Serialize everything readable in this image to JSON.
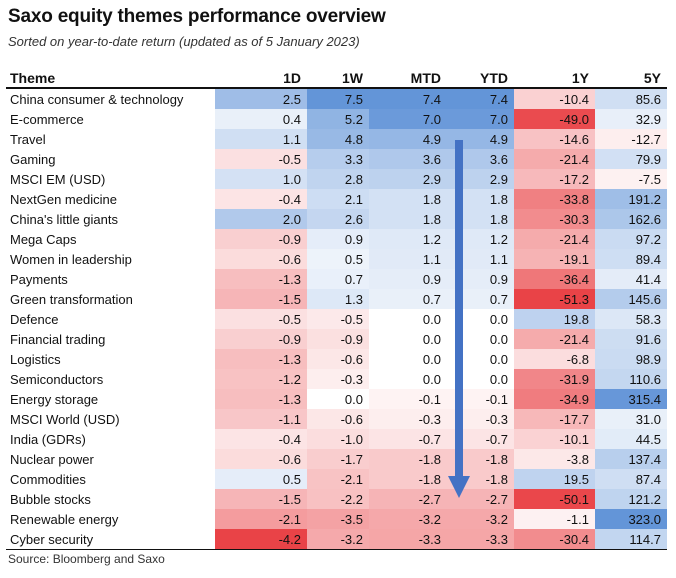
{
  "title": "Saxo equity themes performance overview",
  "subtitle": "Sorted on year-to-date return (updated as of 5 January 2023)",
  "source": "Source: Bloomberg and Saxo",
  "colors": {
    "positive": "#5b8fd6",
    "negative": "#e8393d",
    "arrow": "#4472c4"
  },
  "chart_data": {
    "type": "table",
    "columns": [
      "Theme",
      "1D",
      "1W",
      "MTD",
      "YTD",
      "1Y",
      "5Y"
    ],
    "rows": [
      {
        "theme": "China consumer & technology",
        "values": [
          2.5,
          7.5,
          7.4,
          7.4,
          -10.4,
          85.6
        ]
      },
      {
        "theme": "E-commerce",
        "values": [
          0.4,
          5.2,
          7.0,
          7.0,
          -49.0,
          32.9
        ]
      },
      {
        "theme": "Travel",
        "values": [
          1.1,
          4.8,
          4.9,
          4.9,
          -14.6,
          -12.7
        ]
      },
      {
        "theme": "Gaming",
        "values": [
          -0.5,
          3.3,
          3.6,
          3.6,
          -21.4,
          79.9
        ]
      },
      {
        "theme": "MSCI EM (USD)",
        "values": [
          1.0,
          2.8,
          2.9,
          2.9,
          -17.2,
          -7.5
        ]
      },
      {
        "theme": "NextGen medicine",
        "values": [
          -0.4,
          2.1,
          1.8,
          1.8,
          -33.8,
          191.2
        ]
      },
      {
        "theme": "China's little giants",
        "values": [
          2.0,
          2.6,
          1.8,
          1.8,
          -30.3,
          162.6
        ]
      },
      {
        "theme": "Mega Caps",
        "values": [
          -0.9,
          0.9,
          1.2,
          1.2,
          -21.4,
          97.2
        ]
      },
      {
        "theme": "Women in leadership",
        "values": [
          -0.6,
          0.5,
          1.1,
          1.1,
          -19.1,
          89.4
        ]
      },
      {
        "theme": "Payments",
        "values": [
          -1.3,
          0.7,
          0.9,
          0.9,
          -36.4,
          41.4
        ]
      },
      {
        "theme": "Green transformation",
        "values": [
          -1.5,
          1.3,
          0.7,
          0.7,
          -51.3,
          145.6
        ]
      },
      {
        "theme": "Defence",
        "values": [
          -0.5,
          -0.5,
          0.0,
          0.0,
          19.8,
          58.3
        ]
      },
      {
        "theme": "Financial trading",
        "values": [
          -0.9,
          -0.9,
          0.0,
          0.0,
          -21.4,
          91.6
        ]
      },
      {
        "theme": "Logistics",
        "values": [
          -1.3,
          -0.6,
          0.0,
          0.0,
          -6.8,
          98.9
        ]
      },
      {
        "theme": "Semiconductors",
        "values": [
          -1.2,
          -0.3,
          0.0,
          0.0,
          -31.9,
          110.6
        ]
      },
      {
        "theme": "Energy storage",
        "values": [
          -1.3,
          0.0,
          -0.1,
          -0.1,
          -34.9,
          315.4
        ]
      },
      {
        "theme": "MSCI World (USD)",
        "values": [
          -1.1,
          -0.6,
          -0.3,
          -0.3,
          -17.7,
          31.0
        ]
      },
      {
        "theme": "India (GDRs)",
        "values": [
          -0.4,
          -1.0,
          -0.7,
          -0.7,
          -10.1,
          44.5
        ]
      },
      {
        "theme": "Nuclear power",
        "values": [
          -0.6,
          -1.7,
          -1.8,
          -1.8,
          -3.8,
          137.4
        ]
      },
      {
        "theme": "Commodities",
        "values": [
          0.5,
          -2.1,
          -1.8,
          -1.8,
          19.5,
          87.4
        ]
      },
      {
        "theme": "Bubble stocks",
        "values": [
          -1.5,
          -2.2,
          -2.7,
          -2.7,
          -50.1,
          121.2
        ]
      },
      {
        "theme": "Renewable energy",
        "values": [
          -2.1,
          -3.5,
          -3.2,
          -3.2,
          -1.1,
          323.0
        ]
      },
      {
        "theme": "Cyber security",
        "values": [
          -4.2,
          -3.2,
          -3.3,
          -3.3,
          -30.4,
          114.7
        ]
      }
    ]
  }
}
